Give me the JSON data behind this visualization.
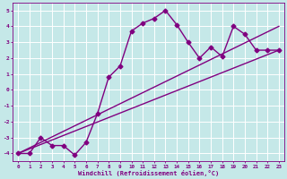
{
  "xlabel": "Windchill (Refroidissement éolien,°C)",
  "background_color": "#c5e8e8",
  "grid_color": "#b0d0d0",
  "line_color": "#800080",
  "xlim": [
    -0.5,
    23.5
  ],
  "ylim": [
    -4.5,
    5.5
  ],
  "xticks": [
    0,
    1,
    2,
    3,
    4,
    5,
    6,
    7,
    8,
    9,
    10,
    11,
    12,
    13,
    14,
    15,
    16,
    17,
    18,
    19,
    20,
    21,
    22,
    23
  ],
  "yticks": [
    -4,
    -3,
    -2,
    -1,
    0,
    1,
    2,
    3,
    4,
    5
  ],
  "line1_x": [
    0,
    1,
    2,
    3,
    4,
    5,
    6,
    7,
    8,
    9,
    10,
    11,
    12,
    13,
    14,
    15,
    16,
    17,
    18,
    19,
    20,
    21,
    22,
    23
  ],
  "line1_y": [
    -4,
    -4,
    -3,
    -3.5,
    -3.5,
    -4.1,
    -3.3,
    -1.5,
    0.8,
    1.5,
    3.7,
    4.2,
    4.5,
    5.0,
    4.1,
    3.0,
    2.0,
    2.7,
    2.1,
    4.0,
    3.5,
    2.5,
    2.5,
    2.5
  ],
  "line2_x": [
    0,
    23
  ],
  "line2_y": [
    -4,
    4.0
  ],
  "line3_x": [
    0,
    23
  ],
  "line3_y": [
    -4,
    2.5
  ],
  "marker": "D",
  "marker_size": 2.5,
  "line_width": 1.0
}
